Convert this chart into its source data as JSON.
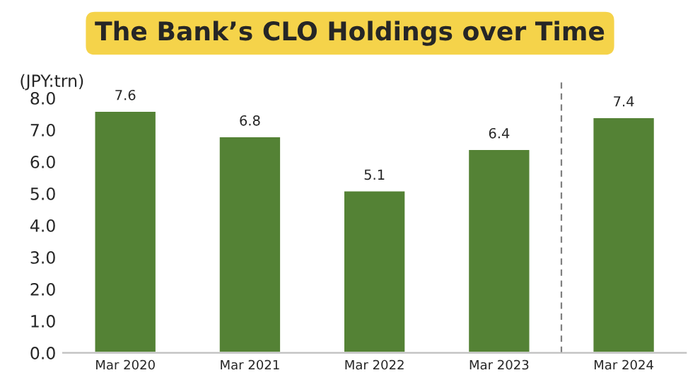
{
  "chart_data": {
    "type": "bar",
    "title": "The Bank’s CLO Holdings over Time",
    "ylabel": "(JPY:trn)",
    "categories": [
      "Mar 2020",
      "Mar 2021",
      "Mar 2022",
      "Mar 2023",
      "Mar 2024"
    ],
    "values": [
      7.6,
      6.8,
      5.1,
      6.4,
      7.4
    ],
    "color": "#548235",
    "ylim": [
      0,
      8
    ],
    "yticks": [
      {
        "value": 0,
        "label": "0.0"
      },
      {
        "value": 1,
        "label": "1.0"
      },
      {
        "value": 2,
        "label": "2.0"
      },
      {
        "value": 3,
        "label": "3.0"
      },
      {
        "value": 4,
        "label": "4.0"
      },
      {
        "value": 5,
        "label": "5.0"
      },
      {
        "value": 6,
        "label": "6.0"
      },
      {
        "value": 7,
        "label": "7.0"
      },
      {
        "value": 8,
        "label": "8.0"
      }
    ],
    "data_labels": true,
    "grid": false,
    "legend": false
  }
}
